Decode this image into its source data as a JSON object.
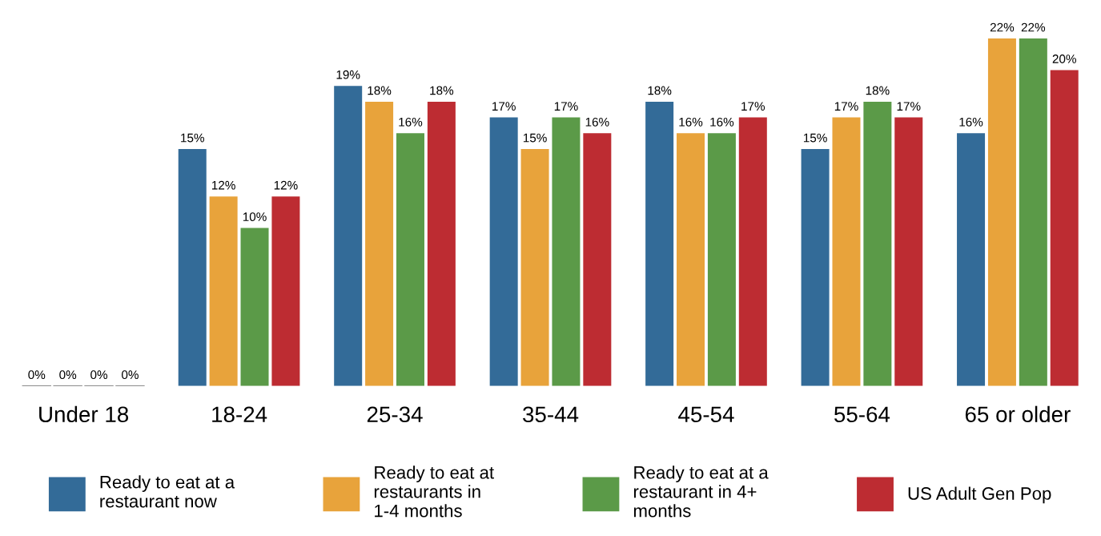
{
  "chart_data": {
    "type": "bar",
    "categories": [
      "Under 18",
      "18-24",
      "25-34",
      "35-44",
      "45-54",
      "55-64",
      "65 or older"
    ],
    "series": [
      {
        "name": "Ready to eat at a restaurant now",
        "color": "#336b98",
        "values": [
          0,
          15,
          19,
          17,
          18,
          15,
          16
        ],
        "value_labels": [
          "0%",
          "15%",
          "19%",
          "17%",
          "18%",
          "15%",
          "16%"
        ]
      },
      {
        "name": "Ready to eat at restaurants in 1-4 months",
        "color": "#e8a33b",
        "values": [
          0,
          12,
          18,
          15,
          16,
          17,
          22
        ],
        "value_labels": [
          "0%",
          "12%",
          "18%",
          "15%",
          "16%",
          "17%",
          "22%"
        ]
      },
      {
        "name": "Ready to eat at a restaurant in 4+ months",
        "color": "#5b9a48",
        "values": [
          0,
          10,
          16,
          17,
          16,
          18,
          22
        ],
        "value_labels": [
          "0%",
          "10%",
          "16%",
          "17%",
          "16%",
          "18%",
          "22%"
        ]
      },
      {
        "name": "US Adult Gen Pop",
        "color": "#bd2c32",
        "values": [
          0,
          12,
          18,
          16,
          17,
          17,
          20
        ],
        "value_labels": [
          "0%",
          "12%",
          "18%",
          "16%",
          "17%",
          "17%",
          "20%"
        ]
      }
    ],
    "tick_labels": "x",
    "legend": "bottom",
    "grid": false
  }
}
